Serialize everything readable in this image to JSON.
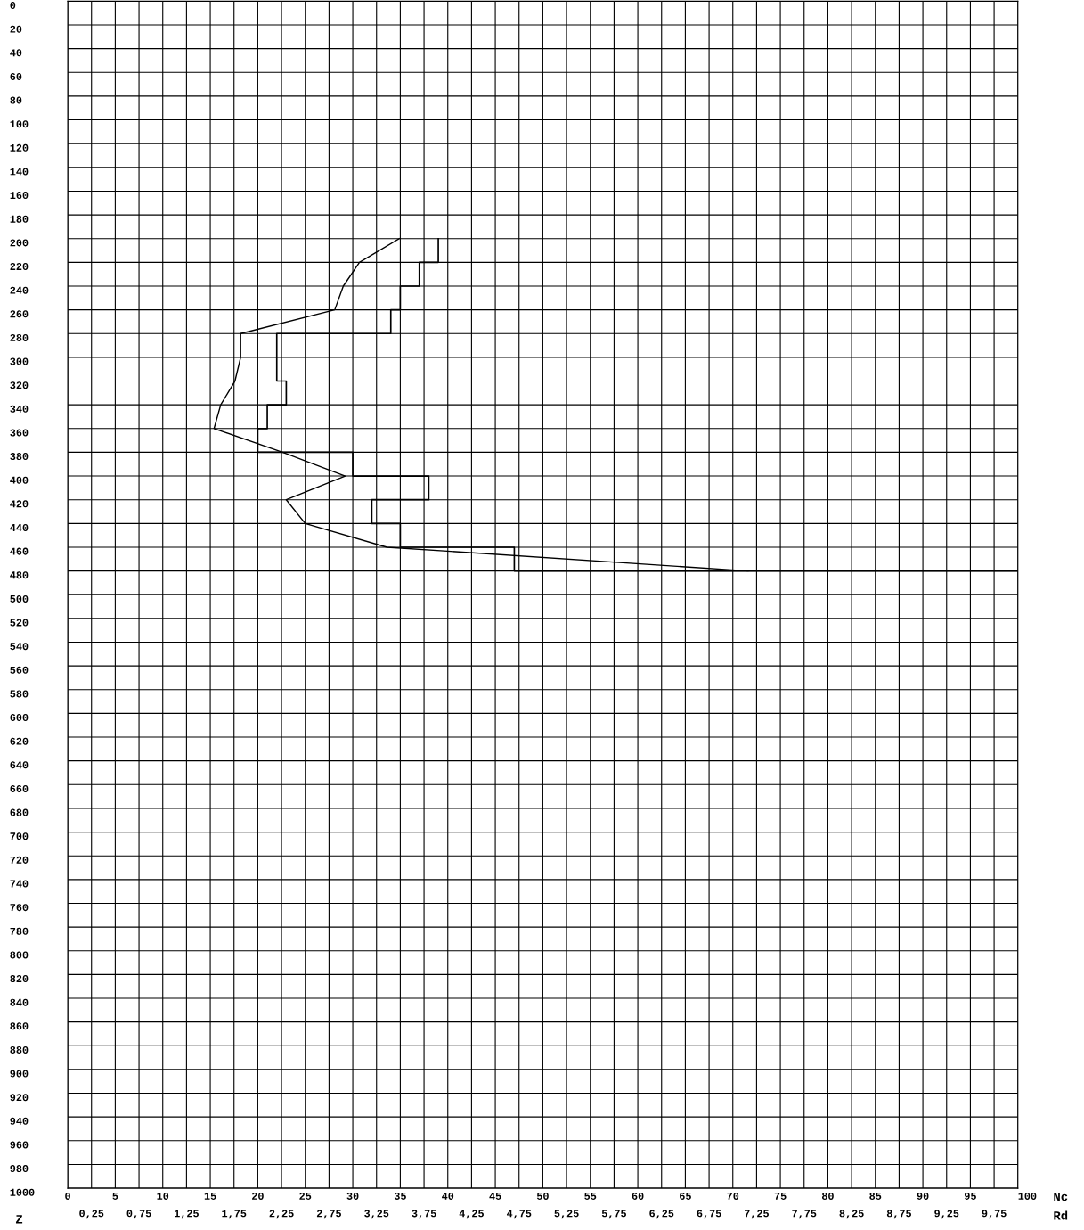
{
  "chart_data": {
    "type": "line",
    "orientation": "horizontal",
    "xlabel": "Nc",
    "x2label": "Rd",
    "ylabel": "Z",
    "xlim": [
      0,
      100
    ],
    "xticks": [
      0,
      5,
      10,
      15,
      20,
      25,
      30,
      35,
      40,
      45,
      50,
      55,
      60,
      65,
      70,
      75,
      80,
      85,
      90,
      95,
      100
    ],
    "x2lim": [
      0,
      10
    ],
    "x2ticks": [
      {
        "value": 0.25,
        "label": "0,25"
      },
      {
        "value": 0.75,
        "label": "0,75"
      },
      {
        "value": 1.25,
        "label": "1,25"
      },
      {
        "value": 1.75,
        "label": "1,75"
      },
      {
        "value": 2.25,
        "label": "2,25"
      },
      {
        "value": 2.75,
        "label": "2,75"
      },
      {
        "value": 3.25,
        "label": "3,25"
      },
      {
        "value": 3.75,
        "label": "3,75"
      },
      {
        "value": 4.25,
        "label": "4,25"
      },
      {
        "value": 4.75,
        "label": "4,75"
      },
      {
        "value": 5.25,
        "label": "5,25"
      },
      {
        "value": 5.75,
        "label": "5,75"
      },
      {
        "value": 6.25,
        "label": "6,25"
      },
      {
        "value": 6.75,
        "label": "6,75"
      },
      {
        "value": 7.25,
        "label": "7,25"
      },
      {
        "value": 7.75,
        "label": "7,75"
      },
      {
        "value": 8.25,
        "label": "8,25"
      },
      {
        "value": 8.75,
        "label": "8,75"
      },
      {
        "value": 9.25,
        "label": "9,25"
      },
      {
        "value": 9.75,
        "label": "9,75"
      }
    ],
    "ylim": [
      1000,
      0
    ],
    "yticks": [
      0,
      20,
      40,
      60,
      80,
      100,
      120,
      140,
      160,
      180,
      200,
      220,
      240,
      260,
      280,
      300,
      320,
      340,
      360,
      380,
      400,
      420,
      440,
      460,
      480,
      500,
      520,
      540,
      560,
      580,
      600,
      620,
      640,
      660,
      680,
      700,
      720,
      740,
      760,
      780,
      800,
      820,
      840,
      860,
      880,
      900,
      920,
      940,
      960,
      980,
      1000
    ],
    "grid": true,
    "legend": false,
    "line_style": "solid",
    "series": [
      {
        "type": "step",
        "color": "#000000",
        "x": [
          200,
          220,
          240,
          260,
          280,
          300,
          320,
          340,
          360,
          380,
          400,
          420,
          440,
          460,
          480
        ],
        "values": [
          39,
          37,
          35,
          34,
          22,
          22,
          23,
          21,
          20,
          30,
          38,
          32,
          35,
          47,
          100
        ]
      },
      {
        "axis": "x2",
        "color": "#000000",
        "x": [
          200,
          220,
          240,
          260,
          280,
          300,
          320,
          340,
          360,
          380,
          400,
          420,
          440,
          460,
          480
        ],
        "values": [
          3.49,
          3.07,
          2.9,
          2.81,
          1.82,
          1.82,
          1.76,
          1.61,
          1.54,
          2.26,
          2.92,
          2.3,
          2.5,
          3.36,
          7.16
        ]
      }
    ]
  }
}
